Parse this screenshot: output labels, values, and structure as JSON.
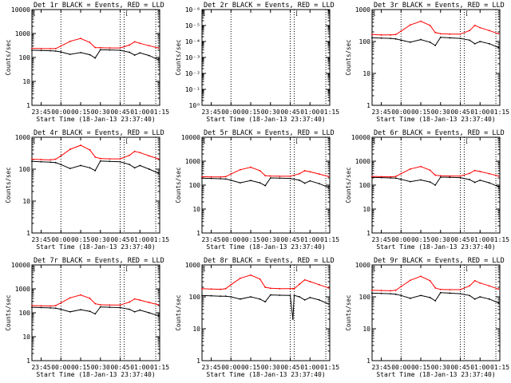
{
  "figure": {
    "start_time_label": "Start Time (18-Jan-13 23:37:40)",
    "ylabel": "Counts/sec",
    "legend": {
      "black": "Events",
      "red": "LLD"
    }
  },
  "chart_data": [
    {
      "type": "line",
      "title": "Det 1r BLACK = Events, RED = LLD",
      "xlabel": "Start Time (18-Jan-13 23:37:40)",
      "ylabel": "Counts/sec",
      "yscale": "log",
      "ylim": [
        1,
        10000
      ],
      "ytick_labels": [
        "1",
        "10",
        "100",
        "1000",
        "10000"
      ],
      "xtick_labels": [
        "23:45",
        "00:00",
        "00:15",
        "00:30",
        "00:45",
        "01:00",
        "01:15"
      ],
      "x": [
        "23:38",
        "23:45",
        "23:52",
        "23:56",
        "00:00",
        "00:07",
        "00:15",
        "00:22",
        "00:26",
        "00:30",
        "00:37",
        "00:45",
        "00:52",
        "00:56",
        "01:00",
        "01:07",
        "01:14"
      ],
      "series": [
        {
          "name": "Events",
          "color": "#000000",
          "values": [
            200,
            195,
            190,
            185,
            170,
            135,
            160,
            130,
            95,
            210,
            205,
            200,
            165,
            125,
            155,
            120,
            80
          ]
        },
        {
          "name": "LLD",
          "color": "#ff0000",
          "values": [
            240,
            235,
            232,
            235,
            300,
            470,
            620,
            420,
            260,
            255,
            250,
            250,
            330,
            450,
            390,
            310,
            250
          ]
        }
      ],
      "markers": [
        "00:00",
        "00:45",
        "00:48",
        "01:12"
      ]
    },
    {
      "type": "line",
      "title": "Det 2r BLACK = Events, RED = LLD",
      "xlabel": "Start Time (18-Jan-13 23:37:40)",
      "ylabel": "Counts/sec",
      "yscale": "log",
      "ylim": [
        1,
        1e-06
      ],
      "ytick_labels": [
        "10⁰",
        "10⁻¹",
        "10⁻²",
        "10⁻³",
        "10⁻⁴",
        "10⁻⁵",
        "10⁻⁶"
      ],
      "xtick_labels": [
        "23:45",
        "00:00",
        "00:15",
        "00:30",
        "00:45",
        "01:00",
        "01:15"
      ],
      "series": [],
      "markers": [
        "00:00",
        "00:45",
        "00:48",
        "01:12"
      ]
    },
    {
      "type": "line",
      "title": "Det 3r BLACK = Events, RED = LLD",
      "xlabel": "Start Time (18-Jan-13 23:37:40)",
      "ylabel": "Counts/sec",
      "yscale": "log",
      "ylim": [
        1,
        1000
      ],
      "ytick_labels": [
        "1",
        "10",
        "100",
        "1000"
      ],
      "xtick_labels": [
        "23:45",
        "00:00",
        "00:15",
        "00:30",
        "00:45",
        "01:00",
        "01:15"
      ],
      "x": [
        "23:38",
        "23:45",
        "23:52",
        "23:56",
        "00:00",
        "00:07",
        "00:15",
        "00:22",
        "00:26",
        "00:30",
        "00:37",
        "00:45",
        "00:52",
        "00:56",
        "01:00",
        "01:07",
        "01:14"
      ],
      "series": [
        {
          "name": "Events",
          "color": "#000000",
          "values": [
            130,
            128,
            125,
            120,
            110,
            95,
            115,
            95,
            75,
            135,
            130,
            125,
            110,
            85,
            100,
            85,
            65
          ]
        },
        {
          "name": "LLD",
          "color": "#ff0000",
          "values": [
            165,
            160,
            160,
            165,
            210,
            330,
            430,
            320,
            190,
            175,
            170,
            170,
            220,
            320,
            270,
            220,
            175
          ]
        }
      ],
      "markers": [
        "00:00",
        "00:45",
        "00:48",
        "01:12"
      ]
    },
    {
      "type": "line",
      "title": "Det 4r BLACK = Events, RED = LLD",
      "xlabel": "Start Time (18-Jan-13 23:37:40)",
      "ylabel": "Counts/sec",
      "yscale": "log",
      "ylim": [
        1,
        1000
      ],
      "ytick_labels": [
        "1",
        "10",
        "100",
        "1000"
      ],
      "xtick_labels": [
        "23:45",
        "00:00",
        "00:15",
        "00:30",
        "00:45",
        "01:00",
        "01:15"
      ],
      "x": [
        "23:38",
        "23:45",
        "23:52",
        "23:56",
        "00:00",
        "00:07",
        "00:15",
        "00:22",
        "00:26",
        "00:30",
        "00:37",
        "00:45",
        "00:52",
        "00:56",
        "01:00",
        "01:07",
        "01:14"
      ],
      "series": [
        {
          "name": "Events",
          "color": "#000000",
          "values": [
            175,
            170,
            165,
            160,
            140,
            105,
            130,
            110,
            90,
            180,
            175,
            170,
            140,
            110,
            130,
            100,
            75
          ]
        },
        {
          "name": "LLD",
          "color": "#ff0000",
          "values": [
            205,
            200,
            195,
            205,
            260,
            420,
            560,
            400,
            240,
            215,
            210,
            210,
            270,
            360,
            330,
            260,
            210
          ]
        }
      ],
      "markers": [
        "00:00",
        "00:45",
        "00:48",
        "01:12"
      ]
    },
    {
      "type": "line",
      "title": "Det 5r BLACK = Events, RED = LLD",
      "xlabel": "Start Time (18-Jan-13 23:37:40)",
      "ylabel": "Counts/sec",
      "yscale": "log",
      "ylim": [
        1,
        10000
      ],
      "ytick_labels": [
        "1",
        "10",
        "100",
        "1000",
        "10000"
      ],
      "xtick_labels": [
        "23:45",
        "00:00",
        "00:15",
        "00:30",
        "00:45",
        "01:00",
        "01:15"
      ],
      "x": [
        "23:38",
        "23:45",
        "23:52",
        "23:56",
        "00:00",
        "00:07",
        "00:15",
        "00:22",
        "00:26",
        "00:30",
        "00:37",
        "00:45",
        "00:52",
        "00:56",
        "01:00",
        "01:07",
        "01:14"
      ],
      "series": [
        {
          "name": "Events",
          "color": "#000000",
          "values": [
            195,
            190,
            185,
            180,
            160,
            125,
            155,
            125,
            95,
            200,
            195,
            190,
            160,
            120,
            150,
            115,
            80
          ]
        },
        {
          "name": "LLD",
          "color": "#ff0000",
          "values": [
            225,
            220,
            218,
            225,
            290,
            440,
            560,
            400,
            250,
            240,
            235,
            235,
            300,
            400,
            360,
            290,
            230
          ]
        }
      ],
      "markers": [
        "00:00",
        "00:45",
        "00:48",
        "01:12"
      ]
    },
    {
      "type": "line",
      "title": "Det 6r BLACK = Events, RED = LLD",
      "xlabel": "Start Time (18-Jan-13 23:37:40)",
      "ylabel": "Counts/sec",
      "yscale": "log",
      "ylim": [
        1,
        10000
      ],
      "ytick_labels": [
        "1",
        "10",
        "100",
        "1000",
        "10000"
      ],
      "xtick_labels": [
        "23:45",
        "00:00",
        "00:15",
        "00:30",
        "00:45",
        "01:00",
        "01:15"
      ],
      "x": [
        "23:38",
        "23:45",
        "23:52",
        "23:56",
        "00:00",
        "00:07",
        "00:15",
        "00:22",
        "00:26",
        "00:30",
        "00:37",
        "00:45",
        "00:52",
        "00:56",
        "01:00",
        "01:07",
        "01:14"
      ],
      "series": [
        {
          "name": "Events",
          "color": "#000000",
          "values": [
            210,
            205,
            200,
            195,
            175,
            140,
            165,
            135,
            100,
            215,
            210,
            205,
            170,
            130,
            160,
            125,
            85
          ]
        },
        {
          "name": "LLD",
          "color": "#ff0000",
          "values": [
            230,
            225,
            222,
            230,
            300,
            470,
            600,
            420,
            260,
            245,
            240,
            240,
            310,
            410,
            370,
            300,
            240
          ]
        }
      ],
      "markers": [
        "00:00",
        "00:45",
        "00:48",
        "01:12"
      ]
    },
    {
      "type": "line",
      "title": "Det 7r BLACK = Events, RED = LLD",
      "xlabel": "Start Time (18-Jan-13 23:37:40)",
      "ylabel": "Counts/sec",
      "yscale": "log",
      "ylim": [
        1,
        10000
      ],
      "ytick_labels": [
        "1",
        "10",
        "100",
        "1000",
        "10000"
      ],
      "xtick_labels": [
        "23:45",
        "00:00",
        "00:15",
        "00:30",
        "00:45",
        "01:00",
        "01:15"
      ],
      "x": [
        "23:38",
        "23:45",
        "23:52",
        "23:56",
        "00:00",
        "00:07",
        "00:15",
        "00:22",
        "00:26",
        "00:30",
        "00:37",
        "00:45",
        "00:52",
        "00:56",
        "01:00",
        "01:07",
        "01:14"
      ],
      "series": [
        {
          "name": "Events",
          "color": "#000000",
          "values": [
            170,
            165,
            160,
            155,
            140,
            110,
            135,
            115,
            90,
            175,
            170,
            165,
            140,
            110,
            130,
            100,
            75
          ]
        },
        {
          "name": "LLD",
          "color": "#ff0000",
          "values": [
            200,
            195,
            192,
            200,
            260,
            420,
            560,
            400,
            240,
            215,
            210,
            210,
            280,
            380,
            340,
            270,
            215
          ]
        }
      ],
      "markers": [
        "00:00",
        "00:45",
        "00:48",
        "01:12"
      ]
    },
    {
      "type": "line",
      "title": "Det 8r BLACK = Events, RED = LLD",
      "xlabel": "Start Time (18-Jan-13 23:37:40)",
      "ylabel": "Counts/sec",
      "yscale": "log",
      "ylim": [
        1,
        1000
      ],
      "ytick_labels": [
        "1",
        "10",
        "100",
        "1000"
      ],
      "xtick_labels": [
        "23:45",
        "00:00",
        "00:15",
        "00:30",
        "00:45",
        "01:00",
        "01:15"
      ],
      "x": [
        "23:38",
        "23:45",
        "23:52",
        "23:56",
        "00:00",
        "00:07",
        "00:15",
        "00:22",
        "00:26",
        "00:30",
        "00:37",
        "00:45",
        "00:47",
        "00:48",
        "00:52",
        "00:56",
        "01:00",
        "01:07",
        "01:14"
      ],
      "series": [
        {
          "name": "Events",
          "color": "#000000",
          "values": [
            110,
            108,
            105,
            105,
            100,
            85,
            100,
            85,
            70,
            115,
            112,
            110,
            20,
            110,
            100,
            80,
            95,
            80,
            60
          ]
        },
        {
          "name": "LLD",
          "color": "#ff0000",
          "values": [
            180,
            175,
            172,
            180,
            240,
            380,
            480,
            360,
            200,
            185,
            180,
            180,
            180,
            180,
            250,
            340,
            300,
            240,
            190
          ]
        }
      ],
      "markers": [
        "00:00",
        "00:45",
        "00:48",
        "01:12"
      ]
    },
    {
      "type": "line",
      "title": "Det 9r BLACK = Events, RED = LLD",
      "xlabel": "Start Time (18-Jan-13 23:37:40)",
      "ylabel": "Counts/sec",
      "yscale": "log",
      "ylim": [
        1,
        1000
      ],
      "ytick_labels": [
        "1",
        "10",
        "100",
        "1000"
      ],
      "xtick_labels": [
        "23:45",
        "00:00",
        "00:15",
        "00:30",
        "00:45",
        "01:00",
        "01:15"
      ],
      "x": [
        "23:38",
        "23:45",
        "23:52",
        "23:56",
        "00:00",
        "00:07",
        "00:15",
        "00:22",
        "00:26",
        "00:30",
        "00:37",
        "00:45",
        "00:52",
        "00:56",
        "01:00",
        "01:07",
        "01:14"
      ],
      "series": [
        {
          "name": "Events",
          "color": "#000000",
          "values": [
            130,
            128,
            125,
            120,
            110,
            90,
            110,
            95,
            75,
            135,
            130,
            125,
            110,
            85,
            100,
            85,
            65
          ]
        },
        {
          "name": "LLD",
          "color": "#ff0000",
          "values": [
            160,
            158,
            155,
            160,
            210,
            330,
            440,
            320,
            190,
            170,
            168,
            168,
            220,
            320,
            270,
            220,
            175
          ]
        }
      ],
      "markers": [
        "00:00",
        "00:45",
        "00:48",
        "01:12"
      ]
    }
  ]
}
